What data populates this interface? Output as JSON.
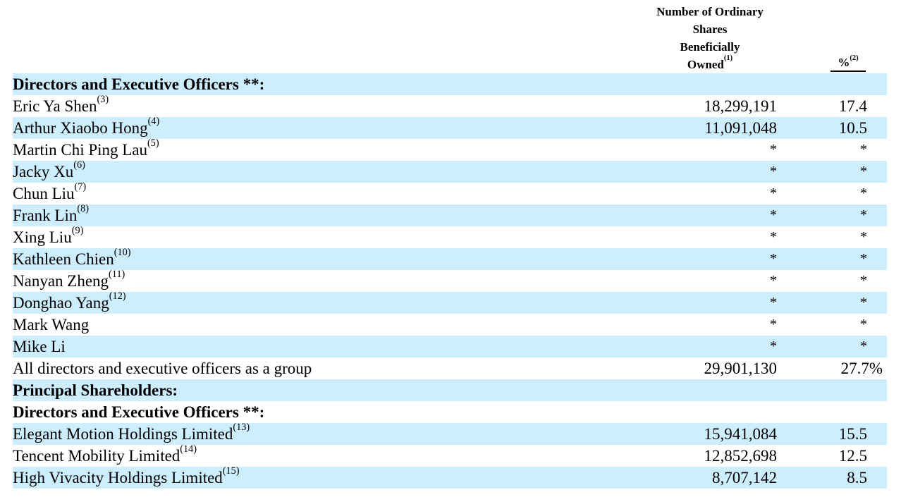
{
  "headers": {
    "shares_lines": [
      "Number of Ordinary",
      "Shares",
      "Beneficially",
      "Owned"
    ],
    "shares_footnote": "(1)",
    "pct_label": "%",
    "pct_footnote": "(2)"
  },
  "rows": [
    {
      "label": "Directors and Executive Officers **:",
      "footnote": "",
      "shares": "",
      "pct": "",
      "section": true,
      "shade": true
    },
    {
      "label": "Eric Ya Shen",
      "footnote": "(3)",
      "shares": "18,299,191",
      "pct": "17.4",
      "section": false,
      "shade": false
    },
    {
      "label": "Arthur Xiaobo Hong",
      "footnote": "(4)",
      "shares": "11,091,048",
      "pct": "10.5",
      "section": false,
      "shade": true
    },
    {
      "label": "Martin Chi Ping Lau",
      "footnote": "(5)",
      "shares": "*",
      "pct": "*",
      "section": false,
      "shade": false
    },
    {
      "label": "Jacky Xu",
      "footnote": "(6)",
      "shares": "*",
      "pct": "*",
      "section": false,
      "shade": true
    },
    {
      "label": "Chun Liu",
      "footnote": "(7)",
      "shares": "*",
      "pct": "*",
      "section": false,
      "shade": false
    },
    {
      "label": "Frank Lin",
      "footnote": "(8)",
      "shares": "*",
      "pct": "*",
      "section": false,
      "shade": true
    },
    {
      "label": "Xing Liu",
      "footnote": "(9)",
      "shares": "*",
      "pct": "*",
      "section": false,
      "shade": false
    },
    {
      "label": "Kathleen Chien",
      "footnote": "(10)",
      "shares": "*",
      "pct": "*",
      "section": false,
      "shade": true
    },
    {
      "label": "Nanyan Zheng",
      "footnote": "(11)",
      "shares": "*",
      "pct": "*",
      "section": false,
      "shade": false
    },
    {
      "label": "Donghao Yang",
      "footnote": "(12)",
      "shares": "*",
      "pct": "*",
      "section": false,
      "shade": true
    },
    {
      "label": "Mark Wang",
      "footnote": "",
      "shares": "*",
      "pct": "*",
      "section": false,
      "shade": false
    },
    {
      "label": "Mike Li",
      "footnote": "",
      "shares": "*",
      "pct": "*",
      "section": false,
      "shade": true
    },
    {
      "label": "All directors and executive officers as a group",
      "footnote": "",
      "shares": "29,901,130",
      "pct": "27.7%",
      "section": false,
      "shade": false
    },
    {
      "label": "Principal Shareholders:",
      "footnote": "",
      "shares": "",
      "pct": "",
      "section": true,
      "shade": true
    },
    {
      "label": "Directors and Executive Officers **:",
      "footnote": "",
      "shares": "",
      "pct": "",
      "section": true,
      "shade": false
    },
    {
      "label": "Elegant Motion Holdings Limited",
      "footnote": "(13)",
      "shares": "15,941,084",
      "pct": "15.5",
      "section": false,
      "shade": true
    },
    {
      "label": "Tencent Mobility Limited",
      "footnote": "(14)",
      "shares": "12,852,698",
      "pct": "12.5",
      "section": false,
      "shade": false
    },
    {
      "label": "High Vivacity Holdings Limited",
      "footnote": "(15)",
      "shares": "8,707,142",
      "pct": "8.5",
      "section": false,
      "shade": true
    }
  ]
}
